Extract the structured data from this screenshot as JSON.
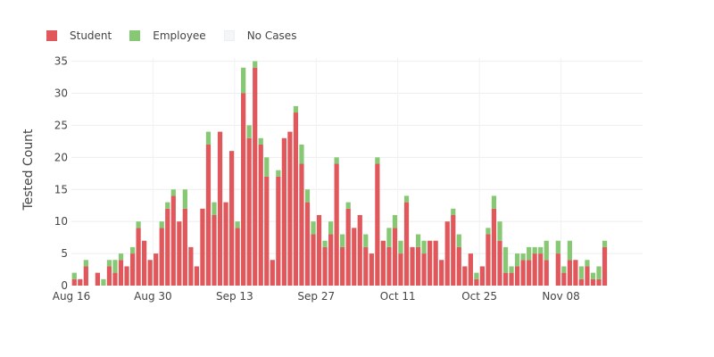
{
  "chart_data": {
    "type": "bar",
    "stacked": true,
    "ylabel": "Tested Count",
    "ylim": [
      0,
      35.5
    ],
    "yticks": [
      0,
      5,
      10,
      15,
      20,
      25,
      30,
      35
    ],
    "xticks": [
      {
        "date": "2020-08-16",
        "label": "Aug 16"
      },
      {
        "date": "2020-08-30",
        "label": "Aug 30"
      },
      {
        "date": "2020-09-13",
        "label": "Sep 13"
      },
      {
        "date": "2020-09-27",
        "label": "Sep 27"
      },
      {
        "date": "2020-10-11",
        "label": "Oct 11"
      },
      {
        "date": "2020-10-25",
        "label": "Oct 25"
      },
      {
        "date": "2020-11-08",
        "label": "Nov 08"
      }
    ],
    "x_start": "2020-08-16",
    "x_end": "2020-11-22",
    "legend_position": "top-left",
    "grid": true,
    "series": [
      {
        "name": "Student",
        "color": "#e0585b",
        "values": [
          1,
          1,
          3,
          0,
          2,
          0,
          3,
          2,
          4,
          3,
          5,
          9,
          7,
          4,
          5,
          9,
          12,
          14,
          10,
          12,
          6,
          3,
          12,
          22,
          11,
          24,
          13,
          21,
          9,
          30,
          23,
          34,
          22,
          17,
          4,
          17,
          23,
          24,
          27,
          19,
          13,
          8,
          11,
          6,
          8,
          19,
          6,
          12,
          9,
          11,
          6,
          5,
          19,
          7,
          6,
          9,
          5,
          13,
          6,
          6,
          5,
          7,
          7,
          4,
          10,
          11,
          6,
          3,
          5,
          1,
          3,
          8,
          12,
          7,
          2,
          2,
          3,
          4,
          4,
          5,
          5,
          4,
          0,
          5,
          2,
          4,
          4,
          1,
          3,
          1,
          1,
          6
        ]
      },
      {
        "name": "Employee",
        "color": "#86c874",
        "values": [
          1,
          0,
          1,
          0,
          0,
          1,
          1,
          2,
          1,
          0,
          1,
          1,
          0,
          0,
          0,
          1,
          1,
          1,
          0,
          3,
          0,
          0,
          0,
          2,
          2,
          0,
          0,
          0,
          1,
          4,
          2,
          1,
          1,
          3,
          0,
          1,
          0,
          0,
          1,
          3,
          2,
          2,
          0,
          1,
          2,
          1,
          2,
          1,
          0,
          0,
          2,
          0,
          1,
          0,
          3,
          2,
          2,
          1,
          0,
          2,
          2,
          0,
          0,
          0,
          0,
          1,
          2,
          0,
          0,
          1,
          0,
          1,
          2,
          3,
          4,
          1,
          2,
          1,
          2,
          1,
          1,
          3,
          0,
          2,
          1,
          3,
          0,
          2,
          1,
          1,
          2,
          1
        ]
      },
      {
        "name": "No Cases",
        "color": "#f4f6f7",
        "values": []
      }
    ]
  }
}
